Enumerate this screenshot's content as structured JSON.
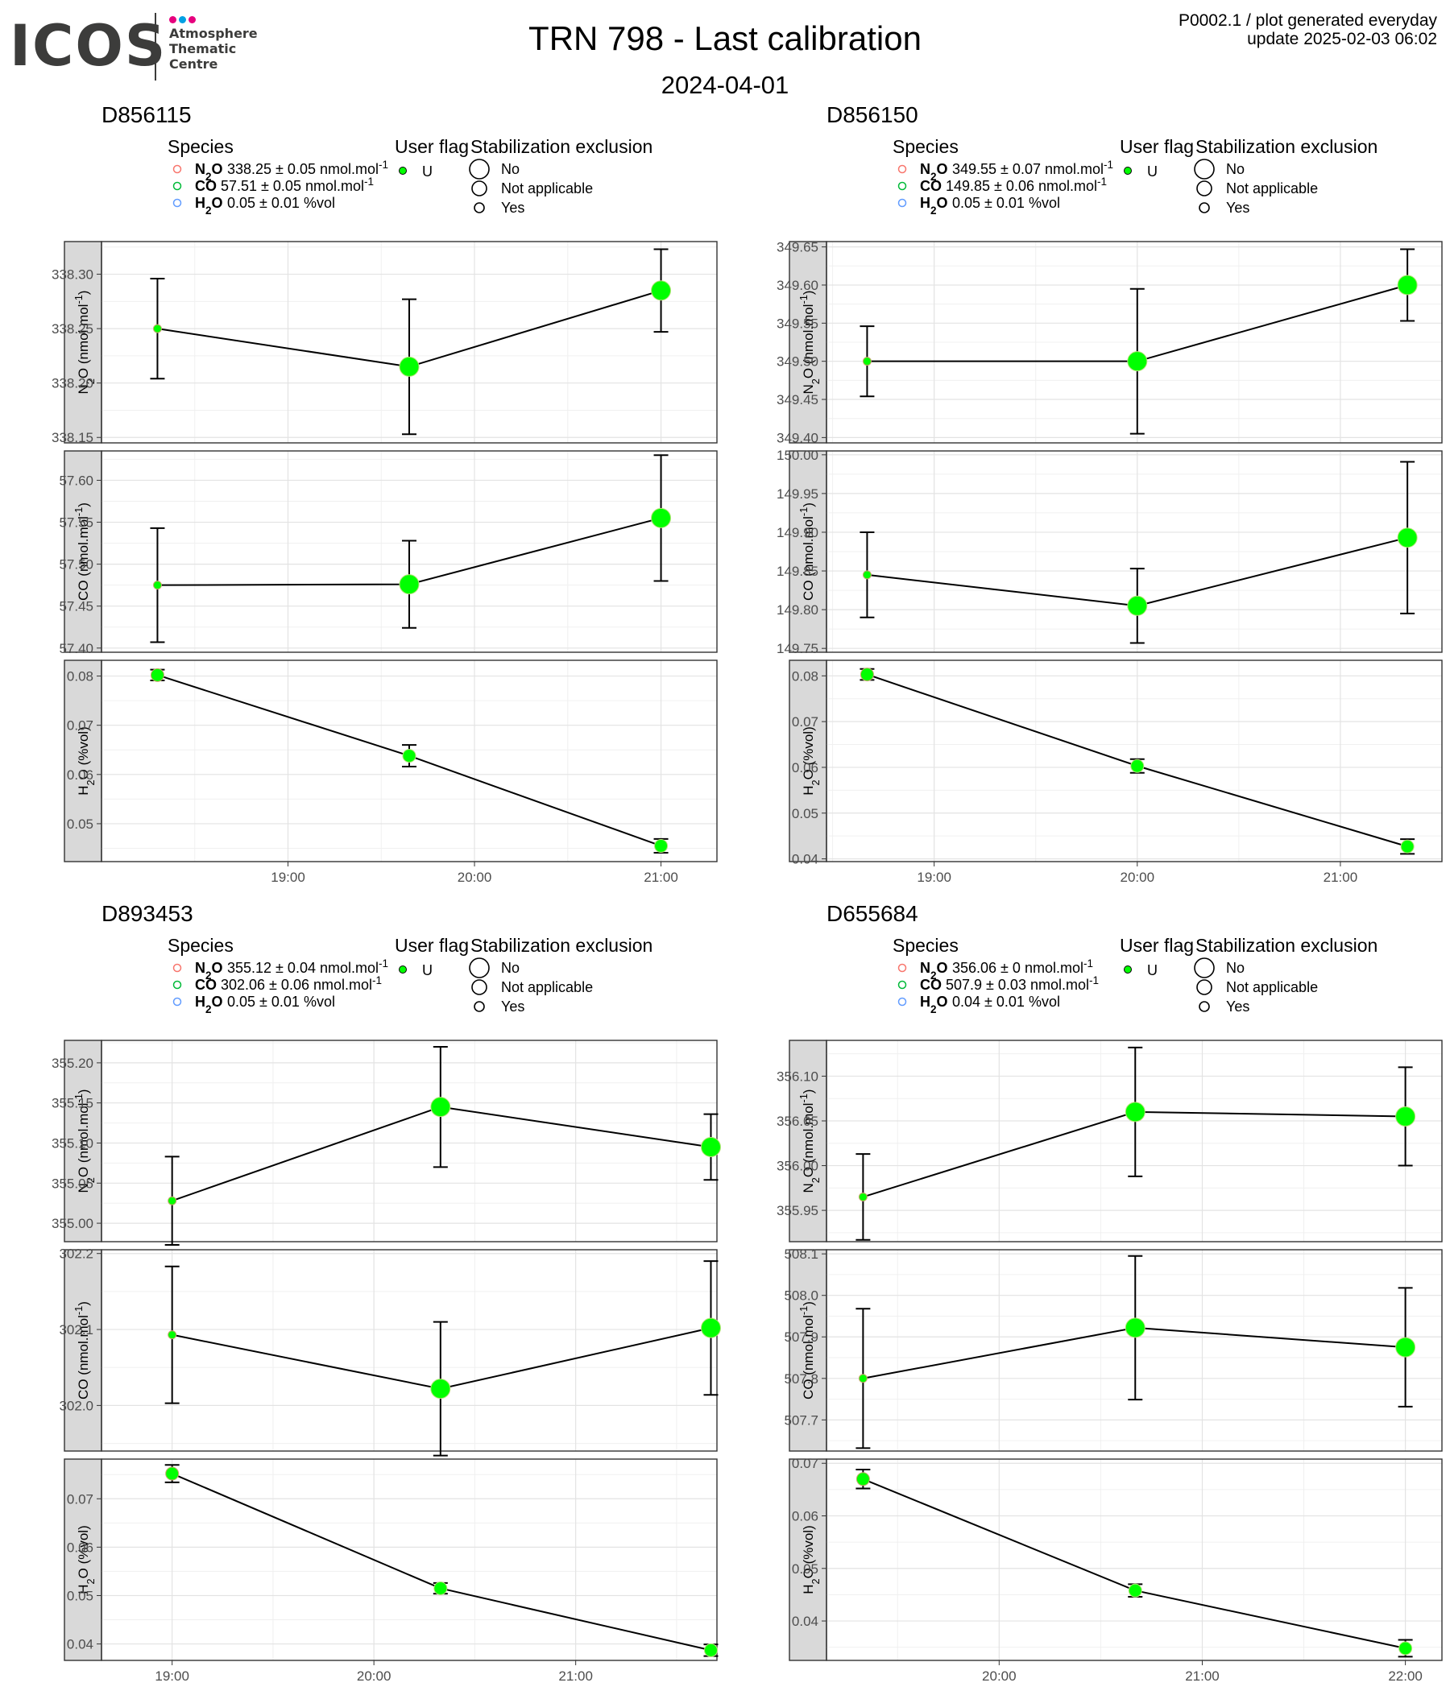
{
  "header": {
    "logo_text": "ICOS",
    "logo_lines": [
      "Atmosphere",
      "Thematic",
      "Centre"
    ],
    "logo_dot_colors": [
      "#e6007e",
      "#00a0e3",
      "#e6007e"
    ],
    "title": "TRN 798 - Last calibration",
    "date": "2024-04-01",
    "meta_line1": "P0002.1 / plot generated everyday",
    "meta_line2": "update  2025-02-03 06:02"
  },
  "legend_titles": {
    "species": "Species",
    "user_flag": "User flag",
    "stabilization": "Stabilization exclusion"
  },
  "legend_user_flag": "U",
  "legend_stab_items": [
    "No",
    "Not applicable",
    "Yes"
  ],
  "colors": {
    "n2o": "#f8766d",
    "co": "#00ba38",
    "h2o": "#619cff",
    "point": "#00ff00",
    "panel_strip": "#d9d9d9"
  },
  "chart_data": [
    {
      "type": "line",
      "title": "D856115",
      "legend_species": [
        {
          "species": "N₂O",
          "text": "338.25 ± 0.05 nmol.mol⁻¹"
        },
        {
          "species": "CO",
          "text": "57.51 ± 0.05 nmol.mol⁻¹"
        },
        {
          "species": "H₂O",
          "text": "0.05 ± 0.01 %vol"
        }
      ],
      "x_ticks": [
        "19:00",
        "20:00",
        "21:00"
      ],
      "x_tick_hours": [
        19,
        20,
        21
      ],
      "xlim": [
        18.0,
        21.3
      ],
      "points_x_hours": [
        18.3,
        19.65,
        21.0
      ],
      "point_sizes": [
        "small",
        "large",
        "large"
      ],
      "panels": [
        {
          "ylabel": "N₂O (nmol.mol⁻¹)",
          "ylim": [
            338.145,
            338.33
          ],
          "y_ticks": [
            "338.15",
            "338.20",
            "338.25",
            "338.30"
          ],
          "values": [
            338.25,
            338.215,
            338.285
          ],
          "errors": [
            0.046,
            0.062,
            0.038
          ]
        },
        {
          "ylabel": "CO (nmol.mol⁻¹)",
          "ylim": [
            57.395,
            57.635
          ],
          "y_ticks": [
            "57.40",
            "57.45",
            "57.50",
            "57.55",
            "57.60"
          ],
          "values": [
            57.475,
            57.476,
            57.555
          ],
          "errors": [
            0.068,
            0.052,
            0.075
          ]
        },
        {
          "ylabel": "H₂O (%vol)",
          "ylim": [
            0.0423,
            0.0832
          ],
          "y_ticks": [
            "0.05",
            "0.06",
            "0.07",
            "0.08"
          ],
          "values": [
            0.0802,
            0.0638,
            0.0455
          ],
          "errors": [
            0.0011,
            0.0022,
            0.0014
          ]
        }
      ]
    },
    {
      "type": "line",
      "title": "D856150",
      "legend_species": [
        {
          "species": "N₂O",
          "text": "349.55 ± 0.07 nmol.mol⁻¹"
        },
        {
          "species": "CO",
          "text": "149.85 ± 0.06 nmol.mol⁻¹"
        },
        {
          "species": "H₂O",
          "text": "0.05 ± 0.01 %vol"
        }
      ],
      "x_ticks": [
        "19:00",
        "20:00",
        "21:00"
      ],
      "x_tick_hours": [
        19,
        20,
        21
      ],
      "xlim": [
        18.47,
        21.5
      ],
      "points_x_hours": [
        18.67,
        20.0,
        21.33
      ],
      "point_sizes": [
        "small",
        "large",
        "large"
      ],
      "panels": [
        {
          "ylabel": "N₂O (nmol.mol⁻¹)",
          "ylim": [
            349.393,
            349.657
          ],
          "y_ticks": [
            "349.40",
            "349.45",
            "349.50",
            "349.55",
            "349.60",
            "349.65"
          ],
          "values": [
            349.5,
            349.5,
            349.6
          ],
          "errors": [
            0.046,
            0.095,
            0.047
          ]
        },
        {
          "ylabel": "CO (nmol.mol⁻¹)",
          "ylim": [
            149.745,
            150.005
          ],
          "y_ticks": [
            "149.75",
            "149.80",
            "149.85",
            "149.90",
            "149.95",
            "150.00"
          ],
          "values": [
            149.845,
            149.805,
            149.893
          ],
          "errors": [
            0.055,
            0.048,
            0.098
          ]
        },
        {
          "ylabel": "H₂O (%vol)",
          "ylim": [
            0.0394,
            0.0834
          ],
          "y_ticks": [
            "0.04",
            "0.05",
            "0.06",
            "0.07",
            "0.08"
          ],
          "values": [
            0.0803,
            0.0603,
            0.0427
          ],
          "errors": [
            0.0012,
            0.0015,
            0.0016
          ]
        }
      ]
    },
    {
      "type": "line",
      "title": "D893453",
      "legend_species": [
        {
          "species": "N₂O",
          "text": "355.12 ± 0.04 nmol.mol⁻¹"
        },
        {
          "species": "CO",
          "text": "302.06 ± 0.06 nmol.mol⁻¹"
        },
        {
          "species": "H₂O",
          "text": "0.05 ± 0.01 %vol"
        }
      ],
      "x_ticks": [
        "19:00",
        "20:00",
        "21:00"
      ],
      "x_tick_hours": [
        19,
        20,
        21
      ],
      "xlim": [
        18.65,
        21.7
      ],
      "points_x_hours": [
        19.0,
        20.33,
        21.67
      ],
      "point_sizes": [
        "small",
        "large",
        "large"
      ],
      "panels": [
        {
          "ylabel": "N₂O (nmol.mol⁻¹)",
          "ylim": [
            354.977,
            355.228
          ],
          "y_ticks": [
            "355.00",
            "355.05",
            "355.10",
            "355.15",
            "355.20"
          ],
          "values": [
            355.028,
            355.145,
            355.095
          ],
          "errors": [
            0.055,
            0.075,
            0.041
          ]
        },
        {
          "ylabel": "CO (nmol.mol⁻¹)",
          "ylim": [
            301.94,
            302.205
          ],
          "y_ticks": [
            "302.0",
            "302.1",
            "302.2"
          ],
          "values": [
            302.093,
            302.022,
            302.102
          ],
          "errors": [
            0.09,
            0.088,
            0.088
          ]
        },
        {
          "ylabel": "H₂O (%vol)",
          "ylim": [
            0.0366,
            0.0782
          ],
          "y_ticks": [
            "0.04",
            "0.05",
            "0.06",
            "0.07"
          ],
          "values": [
            0.0752,
            0.0515,
            0.0387
          ],
          "errors": [
            0.0018,
            0.0011,
            0.0012
          ]
        }
      ]
    },
    {
      "type": "line",
      "title": "D655684",
      "legend_species": [
        {
          "species": "N₂O",
          "text": "356.06 ± 0 nmol.mol⁻¹"
        },
        {
          "species": "CO",
          "text": "507.9 ± 0.03 nmol.mol⁻¹"
        },
        {
          "species": "H₂O",
          "text": "0.04 ± 0.01 %vol"
        }
      ],
      "x_ticks": [
        "20:00",
        "21:00",
        "22:00"
      ],
      "x_tick_hours": [
        20,
        21,
        22
      ],
      "xlim": [
        19.15,
        22.18
      ],
      "points_x_hours": [
        19.33,
        20.67,
        22.0
      ],
      "point_sizes": [
        "small",
        "large",
        "large"
      ],
      "panels": [
        {
          "ylabel": "N₂O (nmol.mol⁻¹)",
          "ylim": [
            355.915,
            356.14
          ],
          "y_ticks": [
            "355.95",
            "356.00",
            "356.05",
            "356.10"
          ],
          "values": [
            355.965,
            356.06,
            356.055
          ],
          "errors": [
            0.048,
            0.072,
            0.055
          ]
        },
        {
          "ylabel": "CO (nmol.mol⁻¹)",
          "ylim": [
            507.625,
            508.11
          ],
          "y_ticks": [
            "507.7",
            "507.8",
            "507.9",
            "508.0",
            "508.1"
          ],
          "values": [
            507.8,
            507.922,
            507.875
          ],
          "errors": [
            0.168,
            0.173,
            0.143
          ]
        },
        {
          "ylabel": "H₂O (%vol)",
          "ylim": [
            0.0325,
            0.0708
          ],
          "y_ticks": [
            "0.04",
            "0.05",
            "0.06",
            "0.07"
          ],
          "values": [
            0.067,
            0.0458,
            0.0348
          ],
          "errors": [
            0.0018,
            0.0012,
            0.0016
          ]
        }
      ]
    }
  ]
}
